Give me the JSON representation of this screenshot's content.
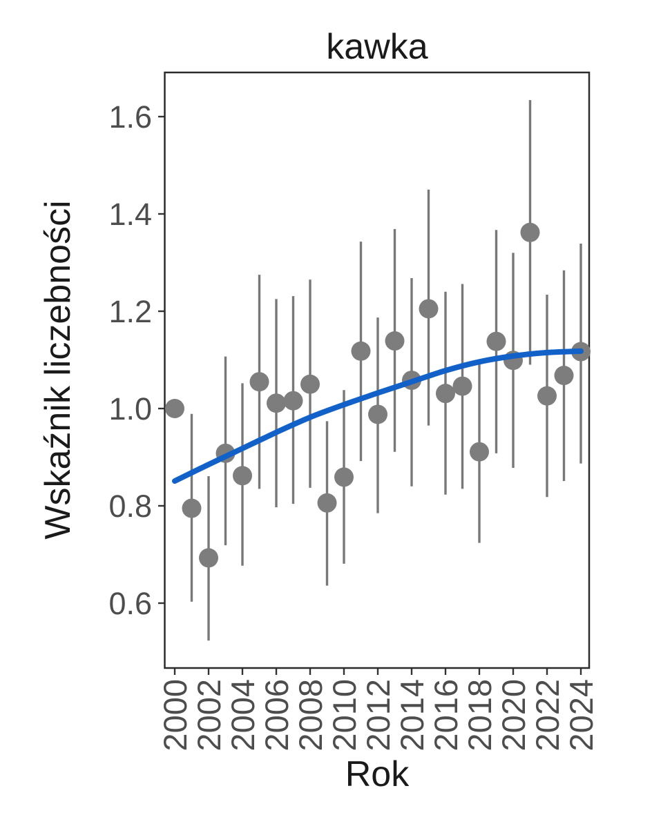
{
  "chart_data": {
    "type": "scatter",
    "title": "kawka",
    "xlabel": "Rok",
    "ylabel": "Wskaźnik liczebności",
    "grid": false,
    "legend": "none",
    "xlim": [
      1999.4,
      2024.5
    ],
    "ylim": [
      0.467,
      1.691
    ],
    "x_ticks": [
      2000,
      2002,
      2004,
      2006,
      2008,
      2010,
      2012,
      2014,
      2016,
      2018,
      2020,
      2022,
      2024
    ],
    "y_ticks": [
      0.6,
      0.8,
      1.0,
      1.2,
      1.4,
      1.6
    ],
    "x": [
      2000,
      2001,
      2002,
      2003,
      2004,
      2005,
      2006,
      2007,
      2008,
      2009,
      2010,
      2011,
      2012,
      2013,
      2014,
      2015,
      2016,
      2017,
      2018,
      2019,
      2020,
      2021,
      2022,
      2023,
      2024
    ],
    "series": [
      {
        "name": "wskaźnik liczebności z przedziałami ufności",
        "type": "points_with_error_bars",
        "values": [
          1.0,
          0.795,
          0.693,
          0.908,
          0.862,
          1.055,
          1.011,
          1.016,
          1.05,
          0.806,
          0.859,
          1.118,
          0.988,
          1.139,
          1.058,
          1.205,
          1.031,
          1.046,
          0.911,
          1.138,
          1.099,
          1.362,
          1.026,
          1.068,
          1.117
        ],
        "ci_low": [
          null,
          0.603,
          0.523,
          0.719,
          0.677,
          0.835,
          0.797,
          0.804,
          0.837,
          0.636,
          0.681,
          0.892,
          0.785,
          0.911,
          0.84,
          0.965,
          0.823,
          0.835,
          0.724,
          0.908,
          0.878,
          1.09,
          0.818,
          0.851,
          0.887
        ],
        "ci_high": [
          null,
          0.989,
          0.861,
          1.107,
          1.052,
          1.275,
          1.225,
          1.231,
          1.265,
          0.974,
          1.038,
          1.343,
          1.187,
          1.369,
          1.268,
          1.45,
          1.24,
          1.256,
          1.098,
          1.367,
          1.32,
          1.634,
          1.234,
          1.284,
          1.339
        ]
      },
      {
        "name": "trend (linia wygładzona)",
        "type": "smooth_line",
        "x": [
          2000,
          2002,
          2004,
          2006,
          2008,
          2010,
          2012,
          2014,
          2016,
          2018,
          2020,
          2022,
          2024
        ],
        "values": [
          0.851,
          0.885,
          0.918,
          0.951,
          0.982,
          1.008,
          1.032,
          1.055,
          1.078,
          1.096,
          1.108,
          1.115,
          1.118
        ]
      }
    ],
    "colors": {
      "point": "#7d7d7d",
      "errorbar": "#787878",
      "trend": "#1161c9",
      "axis_text": "#4d4d4d",
      "text": "#1a1a1a",
      "panel_border": "#2b2b2b",
      "tick_mark": "#333333",
      "background": "#ffffff"
    }
  }
}
